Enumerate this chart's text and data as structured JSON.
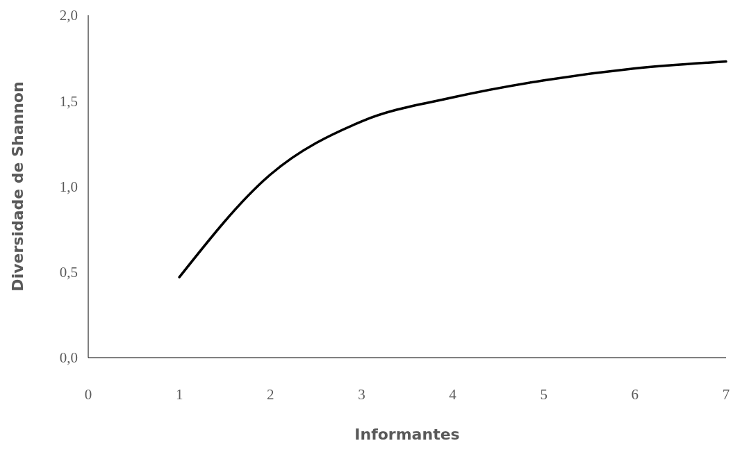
{
  "chart_data": {
    "type": "line",
    "xlabel": "Informantes",
    "ylabel": "Diversidade de Shannon",
    "x": [
      1,
      2,
      3,
      4,
      5,
      6,
      7
    ],
    "series": [
      {
        "color": "#000000",
        "values": [
          0.47,
          1.07,
          1.38,
          1.52,
          1.62,
          1.69,
          1.73
        ]
      }
    ],
    "xlim": [
      0,
      7
    ],
    "xticks": [
      0,
      1,
      2,
      3,
      4,
      5,
      6,
      7
    ],
    "ylim": [
      0,
      2
    ],
    "yticks": [
      {
        "value": 0,
        "label": "0,0"
      },
      {
        "value": 0.5,
        "label": "0,5"
      },
      {
        "value": 1,
        "label": "1,0"
      },
      {
        "value": 1.5,
        "label": "1,5"
      },
      {
        "value": 2,
        "label": "2,0"
      }
    ],
    "grid": false,
    "marker": "none",
    "line_style": "solid"
  }
}
